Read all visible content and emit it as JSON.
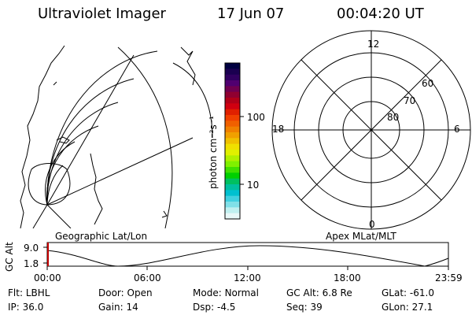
{
  "header": {
    "instrument": "Ultraviolet Imager",
    "date": "17 Jun 07",
    "time": "00:04:20 UT"
  },
  "maps": {
    "geographic_label": "Geographic Lat/Lon",
    "apex_label": "Apex MLat/MLT"
  },
  "colorbar": {
    "unit_label": "photon cm⁻²s⁻¹",
    "tick_labels": [
      "100",
      "10"
    ],
    "colors": [
      "#000040",
      "#1a0050",
      "#300060",
      "#500070",
      "#700050",
      "#900030",
      "#b00018",
      "#d00010",
      "#e02000",
      "#f04000",
      "#f06000",
      "#f08000",
      "#f0a000",
      "#f0c000",
      "#f0e000",
      "#e0f000",
      "#b0f000",
      "#80f000",
      "#40e000",
      "#00d000",
      "#00c060",
      "#00c0a0",
      "#00c0d0",
      "#40d0e0",
      "#80e0e8",
      "#c0f0f0",
      "#e8f8f8"
    ]
  },
  "polar_plot": {
    "mlt_labels": [
      "12",
      "18",
      "6",
      "0"
    ],
    "lat_labels": [
      "60",
      "70",
      "80"
    ]
  },
  "altitude_plot": {
    "axis_label": "GC Alt",
    "y_ticks": [
      "9.0",
      "1.8"
    ],
    "x_ticks": [
      "00:00",
      "06:00",
      "12:00",
      "18:00",
      "23:59"
    ],
    "marker_color": "#c00000"
  },
  "info": {
    "row1": [
      {
        "label": "Flt:",
        "value": "LBHL"
      },
      {
        "label": "Door:",
        "value": "Open"
      },
      {
        "label": "Mode:",
        "value": "Normal"
      },
      {
        "label": "GC Alt:",
        "value": "6.8 Re"
      },
      {
        "label": "GLat:",
        "value": "-61.0"
      }
    ],
    "row2": [
      {
        "label": "IP:",
        "value": "36.0"
      },
      {
        "label": "Gain:",
        "value": "14"
      },
      {
        "label": "Dsp:",
        "value": "-4.5"
      },
      {
        "label": "Seq:",
        "value": "39"
      },
      {
        "label": "GLon:",
        "value": "27.1"
      }
    ]
  }
}
